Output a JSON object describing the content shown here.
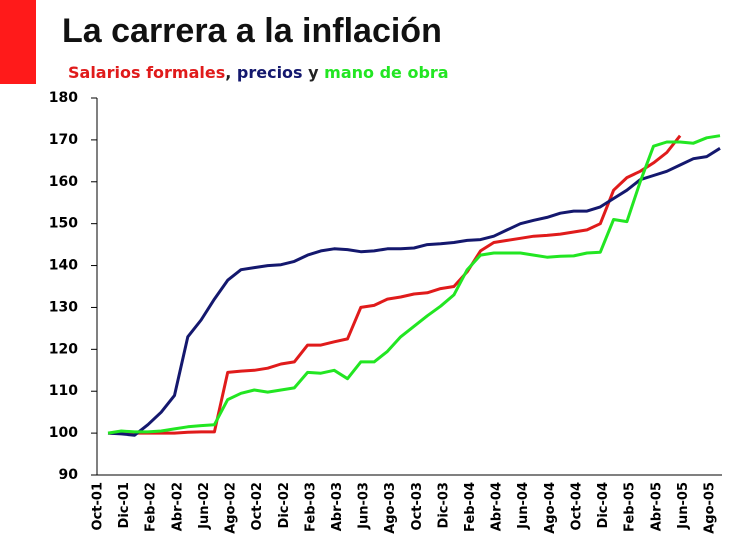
{
  "chart_data": {
    "type": "line",
    "title": "La carrera a la inflación",
    "legend_separators": [
      ", ",
      " y "
    ],
    "categories": [
      "Oct-01",
      null,
      "Dic-01",
      null,
      "Feb-02",
      null,
      "Abr-02",
      null,
      "Jun-02",
      null,
      "Ago-02",
      null,
      "Oct-02",
      null,
      "Dic-02",
      null,
      "Feb-03",
      null,
      "Abr-03",
      null,
      "Jun-03",
      null,
      "Ago-03",
      null,
      "Oct-03",
      null,
      "Dic-03",
      null,
      "Feb-04",
      null,
      "Abr-04",
      null,
      "Jun-04",
      null,
      "Ago-04",
      null,
      "Oct-04",
      null,
      "Dic-04",
      null,
      "Feb-05",
      null,
      "Abr-05",
      null,
      "Jun-05",
      null,
      "Ago-05"
    ],
    "series": [
      {
        "name": "Salarios formales",
        "color": "#e01b1b",
        "values": [
          100,
          100,
          100,
          100,
          100,
          100,
          100.2,
          100.3,
          100.3,
          114.5,
          114.8,
          115,
          115.5,
          116.5,
          117,
          121,
          121,
          121.8,
          122.5,
          130,
          130.5,
          132,
          132.5,
          133.2,
          133.5,
          134.5,
          135,
          138.5,
          143.5,
          145.5,
          146,
          146.5,
          147,
          147.2,
          147.5,
          148,
          148.5,
          150,
          158,
          161,
          162.5,
          164.5,
          167,
          171,
          null,
          null,
          null
        ]
      },
      {
        "name": "precios",
        "color": "#14186e",
        "values": [
          100,
          99.8,
          99.5,
          102,
          105,
          109,
          123,
          127,
          132,
          136.5,
          139,
          139.5,
          140,
          140.2,
          141,
          142.5,
          143.5,
          144,
          143.8,
          143.3,
          143.5,
          144,
          144,
          144.2,
          145,
          145.2,
          145.5,
          146,
          146.2,
          147,
          148.5,
          150,
          150.8,
          151.5,
          152.5,
          153,
          153,
          154,
          156,
          158,
          160.5,
          161.5,
          162.5,
          164,
          165.5,
          166,
          168
        ]
      },
      {
        "name": "mano de obra",
        "color": "#22e622",
        "values": [
          100,
          100.5,
          100.3,
          100.3,
          100.5,
          101,
          101.5,
          101.8,
          102,
          108,
          109.5,
          110.3,
          109.8,
          110.3,
          110.8,
          114.5,
          114.3,
          115,
          113,
          117,
          117,
          119.5,
          123,
          125.5,
          128,
          130.3,
          133,
          139,
          142.5,
          143,
          143,
          143,
          142.5,
          142,
          142.2,
          142.3,
          143,
          143.2,
          151,
          150.5,
          160,
          168.5,
          169.5,
          169.5,
          169.2,
          170.5,
          171
        ]
      }
    ],
    "ylim": [
      90,
      180
    ],
    "yticks": [
      90,
      100,
      110,
      120,
      130,
      140,
      150,
      160,
      170,
      180
    ],
    "grid": false
  }
}
